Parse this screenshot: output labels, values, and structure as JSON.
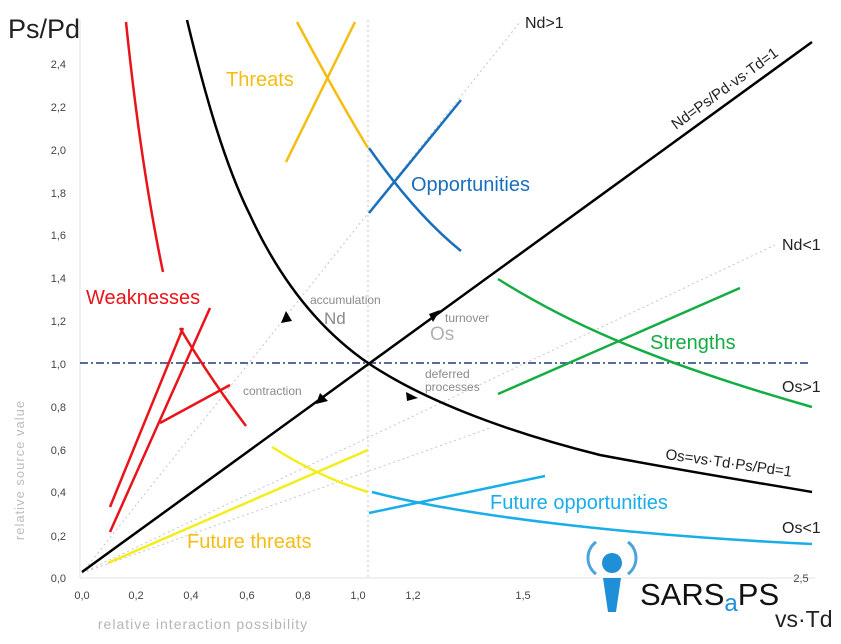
{
  "axes": {
    "y_title": "Ps/Pd",
    "x_title": "vs·Td",
    "y_side_label": "relative source value",
    "x_bottom_label": "relative interaction possibility",
    "x_ticks": [
      "0,0",
      "0,2",
      "0,4",
      "0,6",
      "0,8",
      "1,0",
      "1,2",
      "1,5",
      "2,5"
    ],
    "y_ticks": [
      "0,0",
      "0,2",
      "0,4",
      "0,6",
      "0,8",
      "1,0",
      "1,2",
      "1,4",
      "1,6",
      "1,8",
      "2,0",
      "2,2",
      "2,4"
    ]
  },
  "curves": {
    "nd_eq": "Nd=Ps/Pd·vs·Td=1",
    "nd_gt": "Nd>1",
    "nd_lt": "Nd<1",
    "os_eq": "Os=vs·Td·Ps/Pd=1",
    "os_gt": "Os>1",
    "os_lt": "Os<1"
  },
  "regions": {
    "threats": "Threats",
    "opportunities": "Opportunities",
    "weaknesses": "Weaknesses",
    "strengths": "Strengths",
    "future_threats": "Future threats",
    "future_opportunities": "Future opportunities"
  },
  "annotations": {
    "accumulation": "accumulation",
    "nd_marker": "Nd",
    "turnover": "turnover",
    "os_marker": "Os",
    "contraction": "contraction",
    "deferred_1": "deferred",
    "deferred_2": "processes"
  },
  "logo": {
    "text_1": "SARS",
    "text_2": "a",
    "text_3": "PS"
  },
  "colors": {
    "threats": "#f5bd12",
    "opportunities": "#1a6fbd",
    "weaknesses": "#e8141a",
    "strengths": "#13ad42",
    "future_threats": "#f2ee1b",
    "future_opportunities": "#19aee8",
    "main_curves": "#000000",
    "reference_line": "#1f3a78",
    "guide_lines": "#bdbdbd"
  }
}
